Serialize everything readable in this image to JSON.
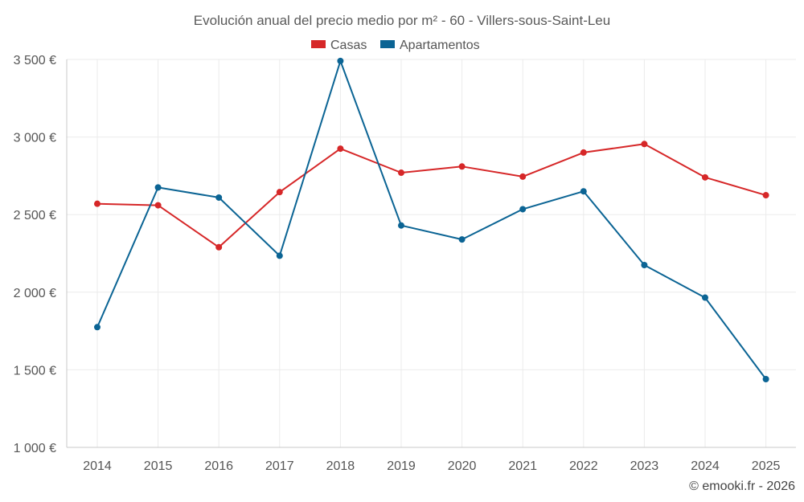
{
  "chart_data": {
    "type": "line",
    "title": "Evolución anual del precio medio por m² - 60 - Villers-sous-Saint-Leu",
    "xlabel": "",
    "ylabel": "",
    "categories": [
      "2014",
      "2015",
      "2016",
      "2017",
      "2018",
      "2019",
      "2020",
      "2021",
      "2022",
      "2023",
      "2024",
      "2025"
    ],
    "ylim": [
      1000,
      3500
    ],
    "yticks": [
      1000,
      1500,
      2000,
      2500,
      3000,
      3500
    ],
    "ytick_labels": [
      "1 000 €",
      "1 500 €",
      "2 000 €",
      "2 500 €",
      "3 000 €",
      "3 500 €"
    ],
    "grid": true,
    "legend_position": "top-center",
    "series": [
      {
        "name": "Casas",
        "color": "#d62728",
        "values": [
          2570,
          2560,
          2290,
          2645,
          2925,
          2770,
          2810,
          2745,
          2900,
          2955,
          2740,
          2625
        ]
      },
      {
        "name": "Apartamentos",
        "color": "#0b6494",
        "values": [
          1775,
          2675,
          2610,
          2235,
          3490,
          2430,
          2340,
          2535,
          2650,
          2175,
          1965,
          1440
        ]
      }
    ]
  },
  "credit": "© emooki.fr - 2026"
}
